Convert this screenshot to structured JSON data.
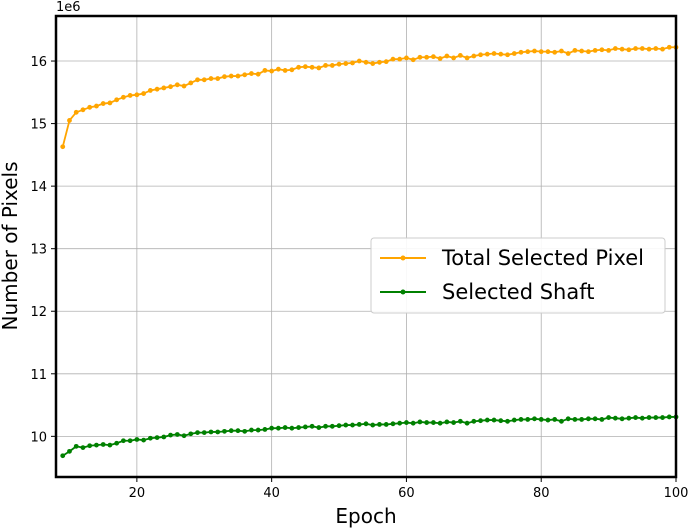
{
  "chart_data": {
    "type": "line",
    "title": "",
    "xlabel": "Epoch",
    "ylabel": "Number of Pixels",
    "y_scale_label": "1e6",
    "xlim": [
      8,
      100
    ],
    "ylim": [
      9.35,
      16.72
    ],
    "x_ticks": [
      20,
      40,
      60,
      80,
      100
    ],
    "y_ticks": [
      10,
      11,
      12,
      13,
      14,
      15,
      16
    ],
    "grid": true,
    "legend_position": "center-right",
    "x": [
      9,
      10,
      11,
      12,
      13,
      14,
      15,
      16,
      17,
      18,
      19,
      20,
      21,
      22,
      23,
      24,
      25,
      26,
      27,
      28,
      29,
      30,
      31,
      32,
      33,
      34,
      35,
      36,
      37,
      38,
      39,
      40,
      41,
      42,
      43,
      44,
      45,
      46,
      47,
      48,
      49,
      50,
      51,
      52,
      53,
      54,
      55,
      56,
      57,
      58,
      59,
      60,
      61,
      62,
      63,
      64,
      65,
      66,
      67,
      68,
      69,
      70,
      71,
      72,
      73,
      74,
      75,
      76,
      77,
      78,
      79,
      80,
      81,
      82,
      83,
      84,
      85,
      86,
      87,
      88,
      89,
      90,
      91,
      92,
      93,
      94,
      95,
      96,
      97,
      98,
      99,
      100
    ],
    "series": [
      {
        "name": "Total Selected Pixel",
        "color": "#ffa500",
        "values": [
          14.63,
          15.05,
          15.18,
          15.22,
          15.26,
          15.28,
          15.32,
          15.33,
          15.38,
          15.42,
          15.45,
          15.46,
          15.48,
          15.53,
          15.55,
          15.57,
          15.59,
          15.62,
          15.6,
          15.65,
          15.7,
          15.7,
          15.72,
          15.72,
          15.75,
          15.76,
          15.76,
          15.78,
          15.8,
          15.79,
          15.85,
          15.84,
          15.87,
          15.85,
          15.86,
          15.9,
          15.91,
          15.9,
          15.89,
          15.93,
          15.93,
          15.95,
          15.96,
          15.97,
          16.0,
          15.98,
          15.96,
          15.98,
          15.99,
          16.03,
          16.03,
          16.05,
          16.02,
          16.06,
          16.06,
          16.07,
          16.04,
          16.08,
          16.05,
          16.09,
          16.05,
          16.08,
          16.1,
          16.11,
          16.12,
          16.11,
          16.1,
          16.12,
          16.14,
          16.15,
          16.16,
          16.15,
          16.15,
          16.14,
          16.16,
          16.12,
          16.17,
          16.16,
          16.15,
          16.17,
          16.18,
          16.17,
          16.2,
          16.19,
          16.18,
          16.2,
          16.2,
          16.19,
          16.2,
          16.19,
          16.22,
          16.22
        ]
      },
      {
        "name": "Selected Shaft",
        "color": "#008000",
        "values": [
          9.69,
          9.76,
          9.84,
          9.82,
          9.85,
          9.86,
          9.87,
          9.86,
          9.89,
          9.93,
          9.93,
          9.95,
          9.94,
          9.97,
          9.98,
          9.99,
          10.02,
          10.03,
          10.01,
          10.04,
          10.06,
          10.06,
          10.07,
          10.07,
          10.08,
          10.09,
          10.09,
          10.08,
          10.1,
          10.1,
          10.11,
          10.13,
          10.13,
          10.14,
          10.13,
          10.14,
          10.15,
          10.16,
          10.14,
          10.16,
          10.16,
          10.17,
          10.18,
          10.18,
          10.19,
          10.2,
          10.18,
          10.19,
          10.19,
          10.2,
          10.21,
          10.22,
          10.21,
          10.23,
          10.22,
          10.22,
          10.21,
          10.23,
          10.22,
          10.24,
          10.21,
          10.24,
          10.25,
          10.26,
          10.26,
          10.25,
          10.24,
          10.26,
          10.27,
          10.27,
          10.28,
          10.27,
          10.26,
          10.27,
          10.24,
          10.28,
          10.27,
          10.27,
          10.28,
          10.28,
          10.27,
          10.3,
          10.29,
          10.28,
          10.29,
          10.3,
          10.29,
          10.3,
          10.3,
          10.3,
          10.31,
          10.31
        ]
      }
    ]
  }
}
